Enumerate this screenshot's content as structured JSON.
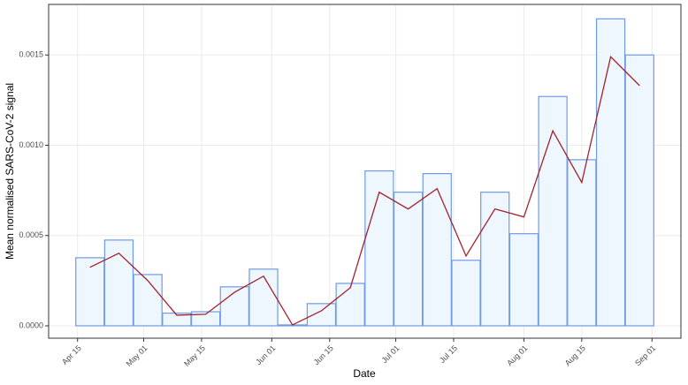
{
  "chart_data": {
    "type": "bar",
    "x_label": "Date",
    "y_label": "Mean normalised SARS-CoV-2 signal",
    "x": [
      "Apr 18",
      "Apr 25",
      "May 02",
      "May 09",
      "May 16",
      "May 23",
      "May 30",
      "Jun 06",
      "Jun 13",
      "Jun 20",
      "Jun 27",
      "Jul 04",
      "Jul 11",
      "Jul 18",
      "Jul 25",
      "Aug 01",
      "Aug 08",
      "Aug 15",
      "Aug 22",
      "Aug 29"
    ],
    "series": [
      {
        "type": "bar",
        "color": "#eef6fe",
        "edge_color": "#6f9be6",
        "values": [
          0.000377,
          0.000475,
          0.000284,
          7e-05,
          7.8e-05,
          0.000216,
          0.000314,
          5e-06,
          0.000123,
          0.000235,
          0.000858,
          0.00074,
          0.000843,
          0.000363,
          0.00074,
          0.00051,
          0.00127,
          0.00092,
          0.0017,
          0.0015
        ]
      },
      {
        "type": "line",
        "color": "#a3232b",
        "values": [
          0.000324,
          0.000402,
          0.00025,
          5.9e-05,
          6.4e-05,
          0.000186,
          0.000275,
          5e-06,
          8.3e-05,
          0.000211,
          0.00074,
          0.000647,
          0.00076,
          0.000387,
          0.000647,
          0.000603,
          0.00108,
          0.000794,
          0.00149,
          0.00133
        ]
      }
    ],
    "xlim": [
      "Apr 08",
      "Sep 08"
    ],
    "xticks": [
      "Apr 15",
      "May 01",
      "May 15",
      "Jun 01",
      "Jun 15",
      "Jul 01",
      "Jul 15",
      "Aug 01",
      "Aug 15",
      "Sep 01"
    ],
    "ylim": [
      -6.86e-05,
      0.00178
    ],
    "yticks": [
      {
        "value": 0,
        "label": "0.0000"
      },
      {
        "value": 0.0005,
        "label": "0.0005"
      },
      {
        "value": 0.001,
        "label": "0.0010"
      },
      {
        "value": 0.0015,
        "label": "0.0015"
      }
    ],
    "grid": true
  }
}
